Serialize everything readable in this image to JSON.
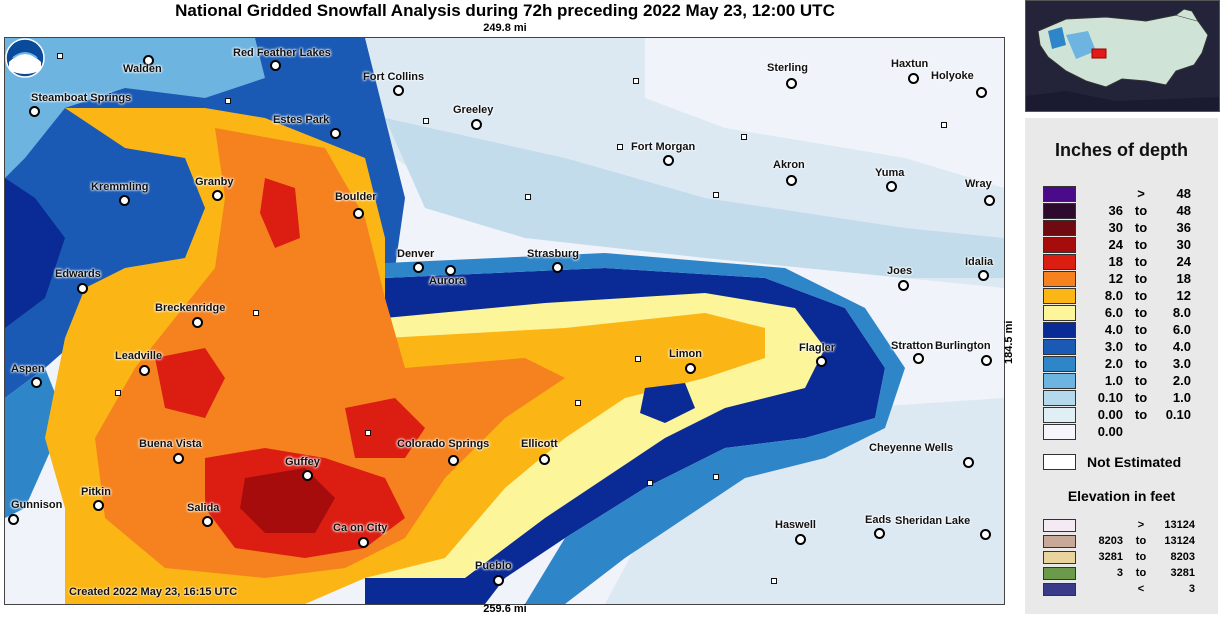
{
  "title": "National Gridded Snowfall Analysis during 72h preceding 2022 May 23, 12:00 UTC",
  "scale": {
    "top": "249.8 mi",
    "bottom": "259.6 mi",
    "right": "184.5 mi"
  },
  "created": "Created 2022 May 23, 16:15 UTC",
  "legend": {
    "title": "Inches of depth",
    "rows": [
      {
        "lo": "",
        "to": ">",
        "hi": "48",
        "color": "#4b0a8a"
      },
      {
        "lo": "36",
        "to": "to",
        "hi": "48",
        "color": "#2e0a2e"
      },
      {
        "lo": "30",
        "to": "to",
        "hi": "36",
        "color": "#6e0a10"
      },
      {
        "lo": "24",
        "to": "to",
        "hi": "30",
        "color": "#a60c0c"
      },
      {
        "lo": "18",
        "to": "to",
        "hi": "24",
        "color": "#dc1e12"
      },
      {
        "lo": "12",
        "to": "to",
        "hi": "18",
        "color": "#f5821e"
      },
      {
        "lo": "8.0",
        "to": "to",
        "hi": "12",
        "color": "#fbb514"
      },
      {
        "lo": "6.0",
        "to": "to",
        "hi": "8.0",
        "color": "#fcf59a"
      },
      {
        "lo": "4.0",
        "to": "to",
        "hi": "6.0",
        "color": "#0a2a96"
      },
      {
        "lo": "3.0",
        "to": "to",
        "hi": "4.0",
        "color": "#1a5ab4"
      },
      {
        "lo": "2.0",
        "to": "to",
        "hi": "3.0",
        "color": "#2e86c8"
      },
      {
        "lo": "1.0",
        "to": "to",
        "hi": "2.0",
        "color": "#6eb4e0"
      },
      {
        "lo": "0.10",
        "to": "to",
        "hi": "1.0",
        "color": "#b4d8ec"
      },
      {
        "lo": "0.00",
        "to": "to",
        "hi": "0.10",
        "color": "#e0eef6"
      },
      {
        "lo": "0.00",
        "to": "",
        "hi": "",
        "color": "#f5f5fb"
      }
    ],
    "not_estimated": "Not Estimated",
    "elevation_title": "Elevation in feet",
    "elevation_rows": [
      {
        "lo": "",
        "to": ">",
        "hi": "13124",
        "color": "#f4eaf4"
      },
      {
        "lo": "8203",
        "to": "to",
        "hi": "13124",
        "color": "#c8a898"
      },
      {
        "lo": "3281",
        "to": "to",
        "hi": "8203",
        "color": "#e8d49c"
      },
      {
        "lo": "3",
        "to": "to",
        "hi": "3281",
        "color": "#6a9a4a"
      },
      {
        "lo": "",
        "to": "<",
        "hi": "3",
        "color": "#3a3a8a"
      }
    ]
  },
  "cities": [
    {
      "name": "Walden"
    },
    {
      "name": "Red Feather Lakes"
    },
    {
      "name": "Steamboat Springs"
    },
    {
      "name": "Fort Collins"
    },
    {
      "name": "Sterling"
    },
    {
      "name": "Haxtun"
    },
    {
      "name": "Holyoke"
    },
    {
      "name": "Greeley"
    },
    {
      "name": "Estes Park"
    },
    {
      "name": "Fort Morgan"
    },
    {
      "name": "Kremmling"
    },
    {
      "name": "Granby"
    },
    {
      "name": "Akron"
    },
    {
      "name": "Yuma"
    },
    {
      "name": "Wray"
    },
    {
      "name": "Boulder"
    },
    {
      "name": "Denver"
    },
    {
      "name": "Aurora"
    },
    {
      "name": "Strasburg"
    },
    {
      "name": "Edwards"
    },
    {
      "name": "Joes"
    },
    {
      "name": "Idalia"
    },
    {
      "name": "Breckenridge"
    },
    {
      "name": "Leadville"
    },
    {
      "name": "Limon"
    },
    {
      "name": "Flagler"
    },
    {
      "name": "Stratton"
    },
    {
      "name": "Burlington"
    },
    {
      "name": "Aspen"
    },
    {
      "name": "Buena Vista"
    },
    {
      "name": "Colorado Springs"
    },
    {
      "name": "Ellicott"
    },
    {
      "name": "Cheyenne Wells"
    },
    {
      "name": "Guffey"
    },
    {
      "name": "Gunnison"
    },
    {
      "name": "Pitkin"
    },
    {
      "name": "Salida"
    },
    {
      "name": "Ca on City"
    },
    {
      "name": "Haswell"
    },
    {
      "name": "Eads"
    },
    {
      "name": "Sheridan Lake"
    },
    {
      "name": "Pueblo"
    }
  ]
}
